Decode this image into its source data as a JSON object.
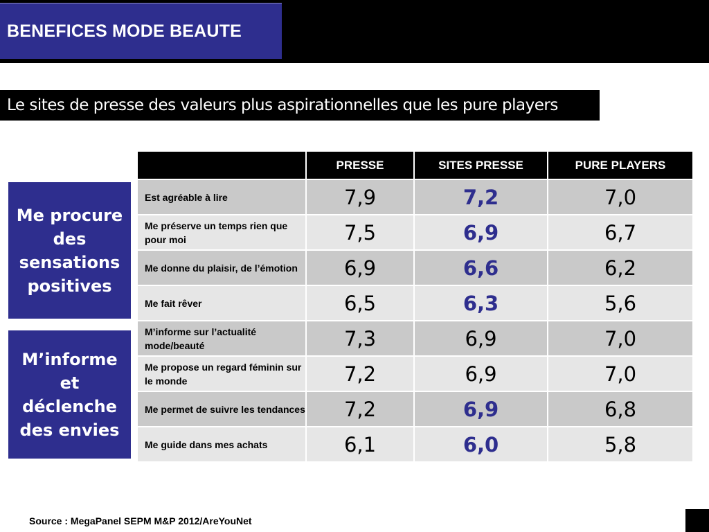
{
  "title": "BENEFICES MODE BEAUTE",
  "subtitle": "Le sites de presse des valeurs plus aspirationnelles que les pure players",
  "groups": [
    "Me procure des sensations positives",
    "M’informe et déclenche des envies"
  ],
  "table": {
    "headers": [
      "",
      "PRESSE",
      "SITES PRESSE",
      "PURE PLAYERS"
    ],
    "rows": [
      {
        "label": "Est agréable à lire",
        "presse": "7,9",
        "sites_presse": "7,2",
        "pure_players": "7,0"
      },
      {
        "label": "Me préserve un temps rien que pour moi",
        "presse": "7,5",
        "sites_presse": "6,9",
        "pure_players": "6,7"
      },
      {
        "label": "Me donne du plaisir, de l’émotion",
        "presse": "6,9",
        "sites_presse": "6,6",
        "pure_players": "6,2"
      },
      {
        "label": "Me fait rêver",
        "presse": "6,5",
        "sites_presse": "6,3",
        "pure_players": "5,6"
      },
      {
        "label": "M’informe sur l’actualité mode/beauté",
        "presse": "7,3",
        "sites_presse": "6,9",
        "pure_players": "7,0"
      },
      {
        "label": "Me propose un regard féminin sur le monde",
        "presse": "7,2",
        "sites_presse": "6,9",
        "pure_players": "7,0"
      },
      {
        "label": "Me permet de suivre les tendances",
        "presse": "7,2",
        "sites_presse": "6,9",
        "pure_players": "6,8"
      },
      {
        "label": "Me guide dans mes achats",
        "presse": "6,1",
        "sites_presse": "6,0",
        "pure_players": "5,8"
      }
    ]
  },
  "source": "Source : MegaPanel SEPM M&P 2012/AreYouNet",
  "colors": {
    "accent": "#2e2e8e",
    "header_bg": "#000000",
    "row_dark": "#c9c9c9",
    "row_light": "#e6e6e6"
  }
}
